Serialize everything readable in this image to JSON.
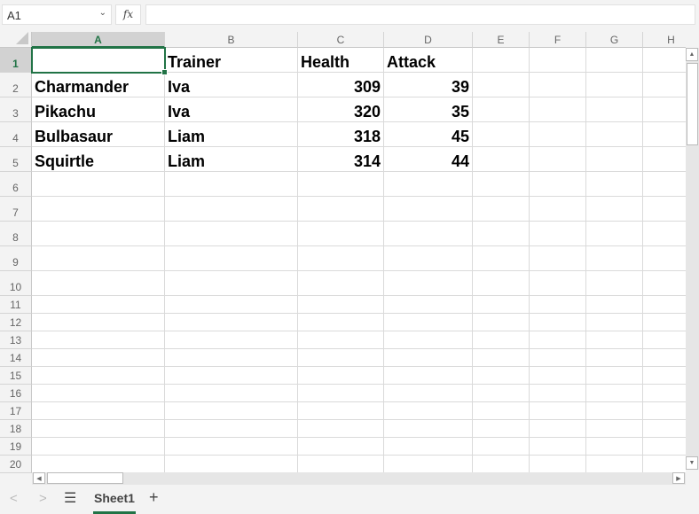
{
  "name_box": {
    "value": "A1"
  },
  "formula_bar": {
    "fx_label": "fx",
    "value": ""
  },
  "columns": [
    {
      "label": "A"
    },
    {
      "label": "B"
    },
    {
      "label": "C"
    },
    {
      "label": "D"
    },
    {
      "label": "E"
    },
    {
      "label": "F"
    },
    {
      "label": "G"
    },
    {
      "label": "H"
    }
  ],
  "row_labels": [
    "1",
    "2",
    "3",
    "4",
    "5",
    "6",
    "7",
    "8",
    "9",
    "10",
    "11",
    "12",
    "13",
    "14",
    "15",
    "16",
    "17",
    "18",
    "19",
    "20"
  ],
  "cells": [
    [
      "",
      "Trainer",
      "Health",
      "Attack"
    ],
    [
      "Charmander",
      "Iva",
      "309",
      "39"
    ],
    [
      "Pikachu",
      "Iva",
      "320",
      "35"
    ],
    [
      "Bulbasaur",
      "Liam",
      "318",
      "45"
    ],
    [
      "Squirtle",
      "Liam",
      "314",
      "44"
    ]
  ],
  "selected_cell": "A1",
  "sheet_tabs": {
    "active": "Sheet1"
  },
  "accent_color": "#217346"
}
